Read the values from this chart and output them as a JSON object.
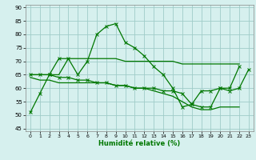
{
  "xlabel": "Humidité relative (%)",
  "xlim": [
    -0.5,
    23.5
  ],
  "ylim": [
    44,
    91
  ],
  "yticks": [
    45,
    50,
    55,
    60,
    65,
    70,
    75,
    80,
    85,
    90
  ],
  "xticks": [
    0,
    1,
    2,
    3,
    4,
    5,
    6,
    7,
    8,
    9,
    10,
    11,
    12,
    13,
    14,
    15,
    16,
    17,
    18,
    19,
    20,
    21,
    22,
    23
  ],
  "bg_color": "#d6f0ee",
  "grid_color": "#a0ccc8",
  "line_color": "#007700",
  "line1_x": [
    0,
    1,
    2,
    3,
    4,
    5,
    6,
    7,
    8,
    9,
    10,
    11,
    12,
    13,
    14,
    15,
    16,
    17,
    18,
    19,
    20,
    21,
    22
  ],
  "line1_y": [
    51,
    58,
    65,
    71,
    71,
    65,
    70,
    80,
    83,
    84,
    77,
    75,
    72,
    68,
    65,
    60,
    53,
    54,
    59,
    59,
    60,
    60,
    68
  ],
  "line2_x": [
    0,
    1,
    2,
    3,
    4,
    5,
    6,
    7,
    8,
    9,
    10,
    11,
    12,
    13,
    14,
    15,
    16,
    17,
    18,
    19,
    20,
    21,
    22,
    23
  ],
  "line2_y": [
    65,
    65,
    65,
    64,
    64,
    63,
    63,
    62,
    62,
    61,
    61,
    60,
    60,
    60,
    59,
    59,
    58,
    54,
    53,
    53,
    60,
    59,
    60,
    67
  ],
  "line3_x": [
    0,
    1,
    2,
    3,
    4,
    5,
    6,
    7,
    8,
    9,
    10,
    11,
    12,
    13,
    14,
    15,
    16,
    17,
    18,
    19,
    20,
    21,
    22
  ],
  "line3_y": [
    65,
    65,
    65,
    65,
    71,
    71,
    71,
    71,
    71,
    71,
    70,
    70,
    70,
    70,
    70,
    70,
    69,
    69,
    69,
    69,
    69,
    69,
    69
  ],
  "line4_x": [
    0,
    1,
    2,
    3,
    4,
    5,
    6,
    7,
    8,
    9,
    10,
    11,
    12,
    13,
    14,
    15,
    16,
    17,
    18,
    19,
    20,
    21,
    22
  ],
  "line4_y": [
    64,
    63,
    63,
    62,
    62,
    62,
    62,
    62,
    62,
    61,
    61,
    60,
    60,
    59,
    58,
    57,
    55,
    53,
    52,
    52,
    53,
    53,
    53
  ]
}
